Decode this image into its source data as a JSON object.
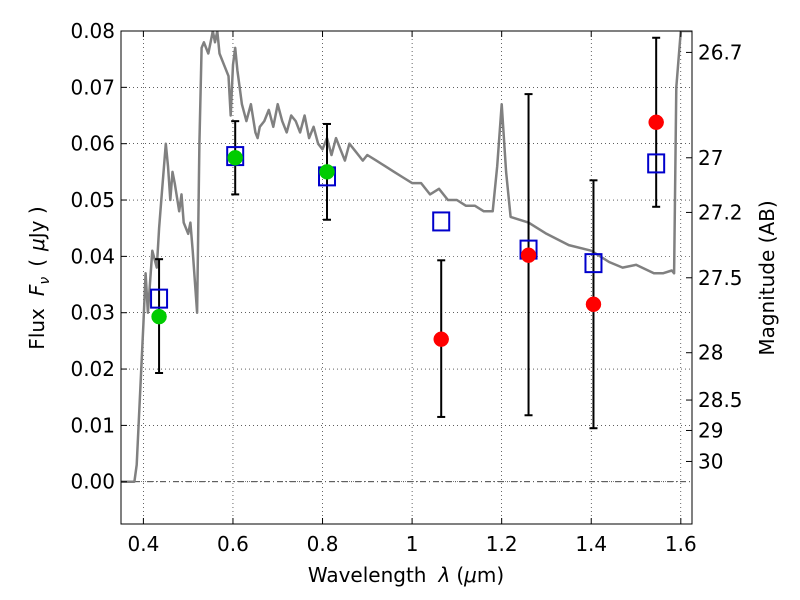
{
  "chart_data": {
    "type": "scatter",
    "title": "",
    "xlabel": "Wavelength",
    "xlabel_symbol": "λ",
    "xlabel_unit_open": "(",
    "xlabel_unit_mu": "μ",
    "xlabel_unit_rest": "m)",
    "ylabel_left": "Flux",
    "ylabel_left_symbol": "F",
    "ylabel_left_subscript": "ν",
    "ylabel_left_unit_open": "(",
    "ylabel_left_unit_mu": "μ",
    "ylabel_left_unit_rest": "Jy )",
    "ylabel_right": "Magnitude (AB)",
    "xlim": [
      0.35,
      1.625
    ],
    "ylim": [
      -0.0075,
      0.08
    ],
    "grid": true,
    "x_ticks": [
      0.4,
      0.6,
      0.8,
      1.0,
      1.2,
      1.4,
      1.6
    ],
    "x_tick_labels": [
      "0.4",
      "0.6",
      "0.8",
      "1",
      "1.2",
      "1.4",
      "1.6"
    ],
    "y_ticks": [
      0.0,
      0.01,
      0.02,
      0.03,
      0.04,
      0.05,
      0.06,
      0.07,
      0.08
    ],
    "y_tick_labels": [
      "0.00",
      "0.01",
      "0.02",
      "0.03",
      "0.04",
      "0.05",
      "0.06",
      "0.07",
      "0.08"
    ],
    "right_ticks": [
      {
        "flux": 0.0762,
        "label": "26.7"
      },
      {
        "flux": 0.0575,
        "label": "27"
      },
      {
        "flux": 0.0478,
        "label": "27.2"
      },
      {
        "flux": 0.0362,
        "label": "27.5"
      },
      {
        "flux": 0.0229,
        "label": "28"
      },
      {
        "flux": 0.0145,
        "label": "28.5"
      },
      {
        "flux": 0.0091,
        "label": "29"
      },
      {
        "flux": 0.0036,
        "label": "30"
      }
    ],
    "series": [
      {
        "marker": "open-square",
        "color": "#0000cc",
        "points": [
          {
            "x": 0.435,
            "y": 0.0325
          },
          {
            "x": 0.605,
            "y": 0.0578
          },
          {
            "x": 0.81,
            "y": 0.0542
          },
          {
            "x": 1.065,
            "y": 0.0462
          },
          {
            "x": 1.26,
            "y": 0.0412
          },
          {
            "x": 1.405,
            "y": 0.0388
          },
          {
            "x": 1.545,
            "y": 0.0565
          }
        ]
      },
      {
        "marker": "filled-circle",
        "color": "#00cc00",
        "points": [
          {
            "x": 0.435,
            "y": 0.0293
          },
          {
            "x": 0.605,
            "y": 0.0575
          },
          {
            "x": 0.81,
            "y": 0.055
          }
        ]
      },
      {
        "marker": "filled-circle",
        "color": "#ff0000",
        "points": [
          {
            "x": 1.065,
            "y": 0.0253
          },
          {
            "x": 1.26,
            "y": 0.0402
          },
          {
            "x": 1.405,
            "y": 0.0315
          },
          {
            "x": 1.545,
            "y": 0.0638
          }
        ]
      }
    ],
    "error_bars": [
      {
        "x": 0.435,
        "low": 0.0193,
        "high": 0.0395
      },
      {
        "x": 0.605,
        "low": 0.051,
        "high": 0.064
      },
      {
        "x": 0.81,
        "low": 0.0465,
        "high": 0.0635
      },
      {
        "x": 1.065,
        "low": 0.0115,
        "high": 0.0393
      },
      {
        "x": 1.26,
        "low": 0.0118,
        "high": 0.0688
      },
      {
        "x": 1.405,
        "low": 0.0095,
        "high": 0.0535
      },
      {
        "x": 1.545,
        "low": 0.0488,
        "high": 0.0788
      }
    ],
    "model_spectrum": {
      "color": "#808080",
      "x": [
        0.35,
        0.38,
        0.385,
        0.4,
        0.405,
        0.41,
        0.42,
        0.43,
        0.435,
        0.44,
        0.45,
        0.455,
        0.46,
        0.465,
        0.47,
        0.48,
        0.485,
        0.49,
        0.5,
        0.505,
        0.51,
        0.52,
        0.525,
        0.53,
        0.535,
        0.54,
        0.545,
        0.55,
        0.555,
        0.56,
        0.565,
        0.57,
        0.58,
        0.59,
        0.595,
        0.6,
        0.605,
        0.61,
        0.62,
        0.63,
        0.64,
        0.65,
        0.655,
        0.66,
        0.67,
        0.68,
        0.69,
        0.7,
        0.71,
        0.72,
        0.73,
        0.74,
        0.75,
        0.76,
        0.77,
        0.78,
        0.79,
        0.8,
        0.81,
        0.82,
        0.83,
        0.84,
        0.85,
        0.86,
        0.87,
        0.88,
        0.89,
        0.9,
        0.92,
        0.94,
        0.96,
        0.98,
        1.0,
        1.02,
        1.04,
        1.06,
        1.08,
        1.1,
        1.12,
        1.14,
        1.16,
        1.18,
        1.19,
        1.2,
        1.21,
        1.22,
        1.26,
        1.3,
        1.35,
        1.4,
        1.44,
        1.47,
        1.5,
        1.54,
        1.56,
        1.58,
        1.585,
        1.59,
        1.6,
        1.625
      ],
      "y": [
        0.0,
        0.0,
        0.003,
        0.028,
        0.037,
        0.03,
        0.041,
        0.038,
        0.045,
        0.05,
        0.06,
        0.056,
        0.05,
        0.055,
        0.053,
        0.048,
        0.051,
        0.046,
        0.044,
        0.046,
        0.041,
        0.03,
        0.06,
        0.077,
        0.078,
        0.077,
        0.076,
        0.078,
        0.08,
        0.078,
        0.08,
        0.076,
        0.074,
        0.072,
        0.065,
        0.074,
        0.077,
        0.073,
        0.067,
        0.064,
        0.067,
        0.062,
        0.061,
        0.063,
        0.064,
        0.066,
        0.063,
        0.067,
        0.064,
        0.062,
        0.065,
        0.064,
        0.062,
        0.065,
        0.061,
        0.063,
        0.06,
        0.059,
        0.061,
        0.058,
        0.061,
        0.059,
        0.057,
        0.06,
        0.059,
        0.058,
        0.057,
        0.058,
        0.057,
        0.056,
        0.055,
        0.054,
        0.053,
        0.053,
        0.051,
        0.052,
        0.05,
        0.05,
        0.049,
        0.049,
        0.048,
        0.048,
        0.056,
        0.067,
        0.055,
        0.047,
        0.046,
        0.044,
        0.042,
        0.041,
        0.039,
        0.038,
        0.0385,
        0.037,
        0.037,
        0.0375,
        0.037,
        0.07,
        0.08,
        0.08
      ]
    },
    "dashdot_line": {
      "y": 0.0
    }
  }
}
